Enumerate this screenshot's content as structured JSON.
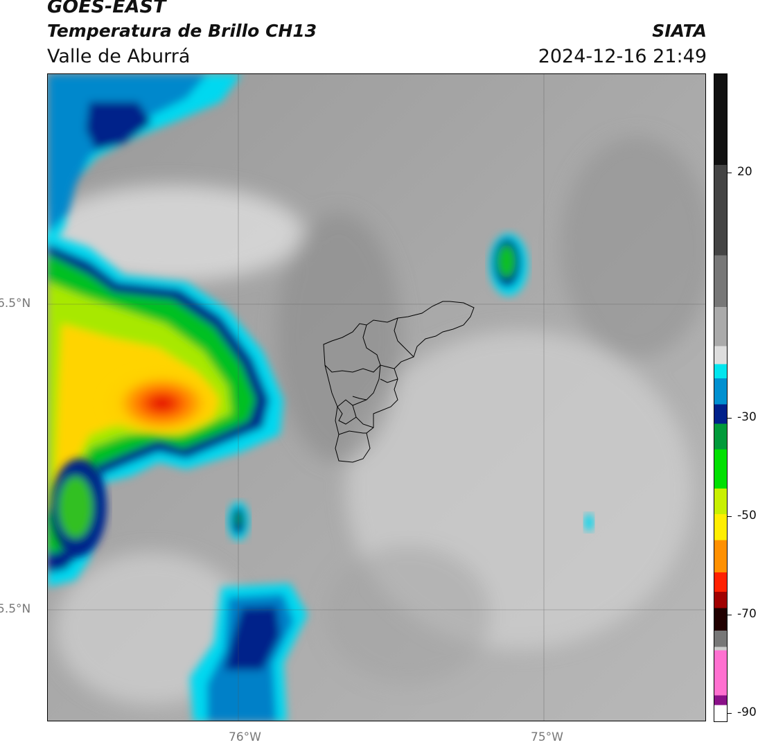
{
  "header": {
    "satellite": "GOES-EAST",
    "product": "Temperatura de Brillo CH13",
    "region": "Valle de Aburrá",
    "brand": "SIATA",
    "datetime": "2024-12-16 21:49"
  },
  "map": {
    "lat_labels": [
      "6.5°N",
      "5.5°N"
    ],
    "lon_labels": [
      "76°W",
      "75°W"
    ]
  },
  "colorbar": {
    "ticks": [
      "20",
      "-30",
      "-50",
      "-70",
      "-90"
    ],
    "colors": [
      "#111111",
      "#444444",
      "#777777",
      "#aaaaaa",
      "#dddddd",
      "#eeeeee",
      "#00e5ee",
      "#0090d0",
      "#00208a",
      "#009a3a",
      "#00e000",
      "#c8f000",
      "#ffee00",
      "#ff9000",
      "#ff2000",
      "#a00000",
      "#200000",
      "#777777",
      "#cccccc",
      "#ff70d0",
      "#8a1088",
      "#ffffff"
    ]
  }
}
